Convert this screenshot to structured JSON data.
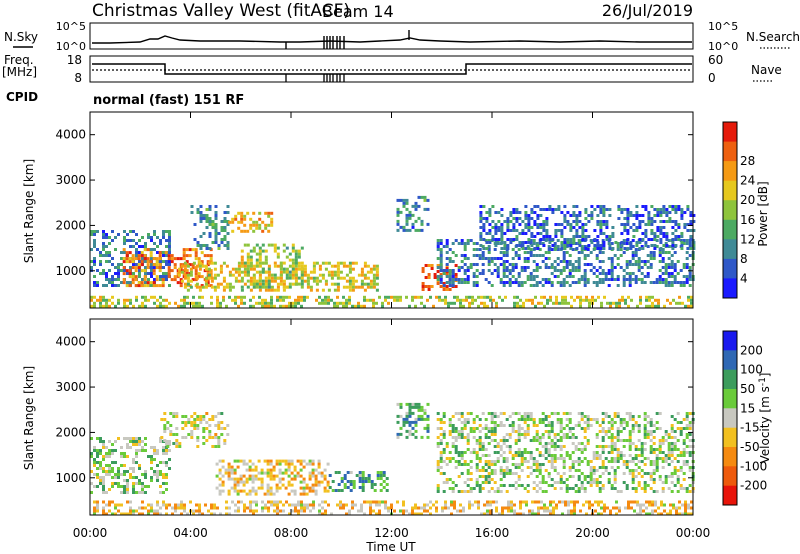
{
  "header": {
    "station": "Christmas Valley West (fitACF)",
    "beam": "Beam 14",
    "date": "26/Jul/2019"
  },
  "summary": {
    "nsky_label": "N.Sky",
    "nsky_ticks": [
      "10^5",
      "10^0"
    ],
    "nsearch_label": "N.Search",
    "freq_label_line1": "Freq.",
    "freq_label_line2": "[MHz]",
    "freq_ticks": [
      "18",
      "8"
    ],
    "nave_label": "Nave",
    "nave_ticks": [
      "60",
      "0"
    ],
    "cpid_label": "CPID",
    "cpid_value": "normal (fast) 151 RF"
  },
  "chart_data": [
    {
      "type": "heatmap",
      "quantity": "power",
      "ylabel": "Slant Range [km]",
      "xlabel": "",
      "x_ticks": [
        "00:00",
        "04:00",
        "08:00",
        "12:00",
        "16:00",
        "20:00",
        "00:00"
      ],
      "xlim_hours": [
        0,
        24
      ],
      "y_ticks": [
        1000,
        2000,
        3000,
        4000
      ],
      "ylim_km": [
        180,
        4500
      ],
      "colorbar": {
        "label": "Power [dB]",
        "ticks": [
          "4",
          "8",
          "12",
          "16",
          "20",
          "24",
          "28"
        ],
        "colors": [
          "#1a1aff",
          "#2f58c8",
          "#3f8a96",
          "#4caa62",
          "#8ec43c",
          "#e6c81e",
          "#f59a14",
          "#ee6010",
          "#e51a0a"
        ]
      },
      "echo_regions": [
        {
          "t0": 0.0,
          "t1": 3.2,
          "r0": 650,
          "r1": 1900,
          "level": 0.25
        },
        {
          "t0": 1.3,
          "t1": 4.8,
          "r0": 650,
          "r1": 1500,
          "level": 0.78
        },
        {
          "t0": 4.0,
          "t1": 5.5,
          "r0": 1500,
          "r1": 2450,
          "level": 0.3
        },
        {
          "t0": 5.5,
          "t1": 7.2,
          "r0": 1900,
          "r1": 2300,
          "level": 0.65
        },
        {
          "t0": 3.5,
          "t1": 11.5,
          "r0": 600,
          "r1": 1200,
          "level": 0.6
        },
        {
          "t0": 6.0,
          "t1": 8.5,
          "r0": 650,
          "r1": 1600,
          "level": 0.5
        },
        {
          "t0": 12.2,
          "t1": 13.5,
          "r0": 1900,
          "r1": 2650,
          "level": 0.28
        },
        {
          "t0": 13.2,
          "t1": 14.6,
          "r0": 600,
          "r1": 1150,
          "level": 0.85
        },
        {
          "t0": 13.8,
          "t1": 24.0,
          "r0": 700,
          "r1": 1700,
          "level": 0.24
        },
        {
          "t0": 15.5,
          "t1": 24.0,
          "r0": 1500,
          "r1": 2450,
          "level": 0.22
        },
        {
          "t0": 0.0,
          "t1": 24.0,
          "r0": 190,
          "r1": 450,
          "level": 0.55
        }
      ]
    },
    {
      "type": "heatmap",
      "quantity": "velocity",
      "ylabel": "Slant Range [km]",
      "xlabel": "Time UT",
      "x_ticks": [
        "00:00",
        "04:00",
        "08:00",
        "12:00",
        "16:00",
        "20:00",
        "00:00"
      ],
      "xlim_hours": [
        0,
        24
      ],
      "y_ticks": [
        1000,
        2000,
        3000,
        4000
      ],
      "ylim_km": [
        180,
        4500
      ],
      "colorbar": {
        "label": "Velocity [m s^-1]",
        "ticks": [
          "200",
          "100",
          "50",
          "15",
          "-15",
          "-50",
          "-100",
          "-200"
        ],
        "colors": [
          "#1a1aee",
          "#2f68b4",
          "#3c9c5c",
          "#6acb3a",
          "#c8c8c0",
          "#f2c020",
          "#f58a10",
          "#ee5a0c",
          "#e8140a"
        ]
      },
      "echo_regions": [
        {
          "t0": 0.0,
          "t1": 3.2,
          "r0": 650,
          "r1": 1900,
          "level": 0.44
        },
        {
          "t0": 2.8,
          "t1": 5.5,
          "r0": 1700,
          "r1": 2450,
          "level": 0.5
        },
        {
          "t0": 5.0,
          "t1": 9.5,
          "r0": 650,
          "r1": 1400,
          "level": 0.58
        },
        {
          "t0": 9.5,
          "t1": 11.8,
          "r0": 750,
          "r1": 1150,
          "level": 0.3
        },
        {
          "t0": 12.2,
          "t1": 13.5,
          "r0": 1900,
          "r1": 2650,
          "level": 0.32
        },
        {
          "t0": 13.8,
          "t1": 24.0,
          "r0": 700,
          "r1": 2450,
          "level": 0.44
        },
        {
          "t0": 0.0,
          "t1": 24.0,
          "r0": 190,
          "r1": 500,
          "level": 0.6
        }
      ]
    }
  ]
}
